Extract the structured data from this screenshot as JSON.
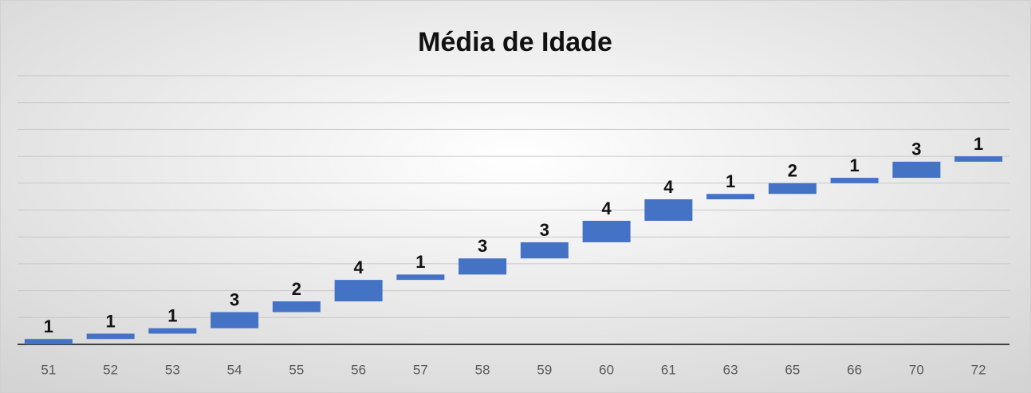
{
  "chart_data": {
    "type": "waterfall",
    "title": "Média de Idade",
    "categories": [
      "51",
      "52",
      "53",
      "54",
      "55",
      "56",
      "57",
      "58",
      "59",
      "60",
      "61",
      "63",
      "65",
      "66",
      "70",
      "72"
    ],
    "values": [
      1,
      1,
      1,
      3,
      2,
      4,
      1,
      3,
      3,
      4,
      4,
      1,
      2,
      1,
      3,
      1
    ],
    "color": "#4472c4",
    "ylim": [
      0,
      50
    ],
    "yticks": [
      0,
      5,
      10,
      15,
      20,
      25,
      30,
      35,
      40,
      45,
      50
    ],
    "grid": true
  }
}
